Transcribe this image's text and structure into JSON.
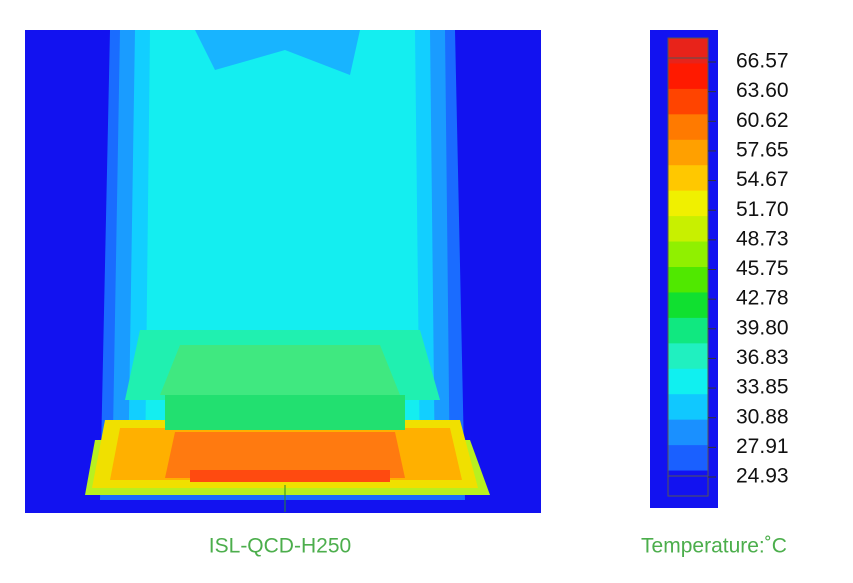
{
  "image_caption": "ISL-QCD-H250",
  "legend": {
    "title": "Temperature:˚C",
    "labels": [
      "66.57",
      "63.60",
      "60.62",
      "57.65",
      "54.67",
      "51.70",
      "48.73",
      "45.75",
      "42.78",
      "39.80",
      "36.83",
      "33.85",
      "30.88",
      "27.91",
      "24.93"
    ]
  }
}
